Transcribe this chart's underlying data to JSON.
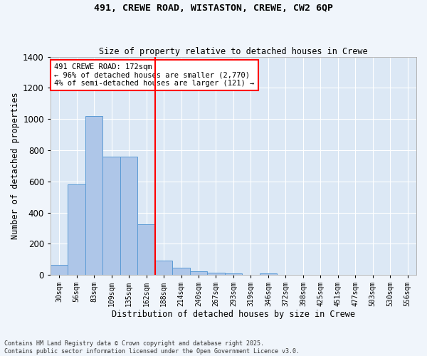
{
  "title1": "491, CREWE ROAD, WISTASTON, CREWE, CW2 6QP",
  "title2": "Size of property relative to detached houses in Crewe",
  "xlabel": "Distribution of detached houses by size in Crewe",
  "ylabel": "Number of detached properties",
  "bar_color": "#aec6e8",
  "bar_edge_color": "#5b9bd5",
  "bg_color": "#dce8f5",
  "grid_color": "#ffffff",
  "vline_color": "red",
  "annotation_text": "491 CREWE ROAD: 172sqm\n← 96% of detached houses are smaller (2,770)\n4% of semi-detached houses are larger (121) →",
  "categories": [
    "30sqm",
    "56sqm",
    "83sqm",
    "109sqm",
    "135sqm",
    "162sqm",
    "188sqm",
    "214sqm",
    "240sqm",
    "267sqm",
    "293sqm",
    "319sqm",
    "346sqm",
    "372sqm",
    "398sqm",
    "425sqm",
    "451sqm",
    "477sqm",
    "503sqm",
    "530sqm",
    "556sqm"
  ],
  "values": [
    65,
    580,
    1020,
    760,
    760,
    325,
    90,
    45,
    25,
    15,
    10,
    0,
    10,
    0,
    0,
    0,
    0,
    0,
    0,
    0,
    0
  ],
  "ylim": [
    0,
    1400
  ],
  "yticks": [
    0,
    200,
    400,
    600,
    800,
    1000,
    1200,
    1400
  ],
  "footnote": "Contains HM Land Registry data © Crown copyright and database right 2025.\nContains public sector information licensed under the Open Government Licence v3.0.",
  "bar_width": 1.0,
  "fig_bg": "#f0f5fb"
}
